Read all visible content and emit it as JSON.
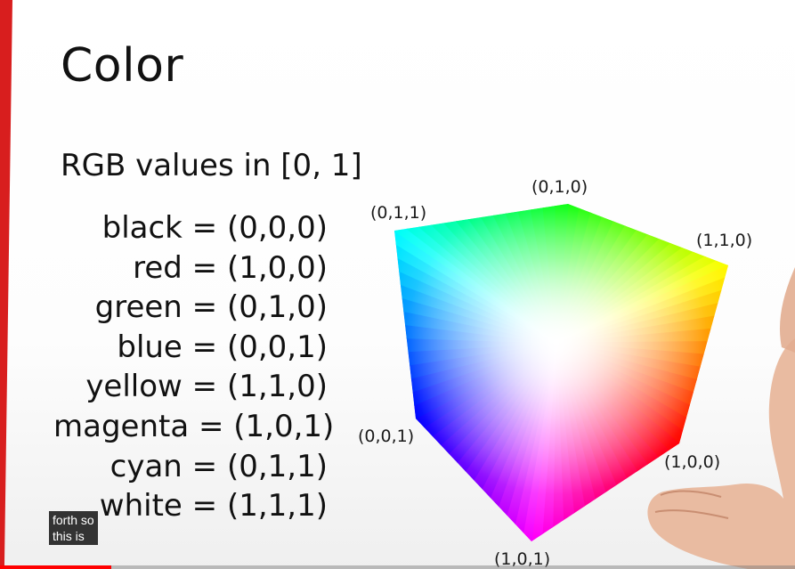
{
  "slide": {
    "title": "Color",
    "subtitle": "RGB values in [0, 1]",
    "accent_color": "#d81e1e",
    "color_list": [
      "black = (0,0,0)",
      "red = (1,0,0)",
      "green = (0,1,0)",
      "blue = (0,0,1)",
      "yellow = (1,1,0)",
      "magenta = (1,0,1)",
      "cyan = (0,1,1)",
      "white = (1,1,1)"
    ]
  },
  "cube": {
    "corner_labels": {
      "top": "(0,1,0)",
      "top_left": "(0,1,1)",
      "top_right": "(1,1,0)",
      "left": "(0,0,1)",
      "right": "(1,0,0)",
      "bottom": "(1,0,1)"
    },
    "face_colors": {
      "top_back": "#00ff00",
      "top_left": "#00ffff",
      "top_right": "#ffff00",
      "center": "#ffffff",
      "left": "#0000ff",
      "right": "#ff0000",
      "bottom": "#ff00ff"
    }
  },
  "caption": {
    "lines": [
      "forth so",
      "this is"
    ]
  },
  "player": {
    "progress_fraction": 0.14,
    "progress_color": "#ff0000"
  }
}
